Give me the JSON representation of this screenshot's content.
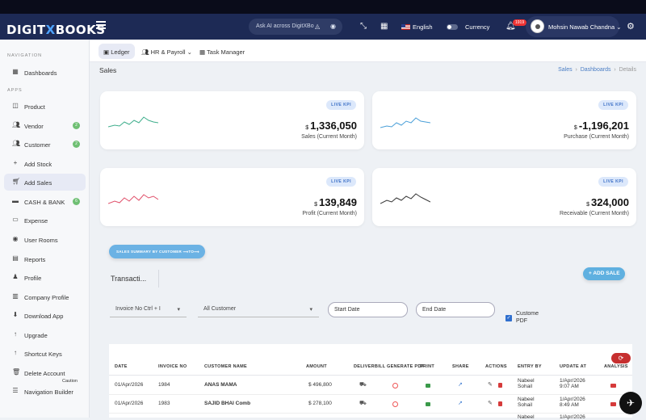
{
  "header": {
    "logo_part1": "DIGIT",
    "logo_part2": "BOOKS",
    "ai_search_placeholder": "Ask AI across DigitXBo",
    "language": "English",
    "currency_label": "Currency",
    "notification_count": "1919",
    "user_name": "Mohsin Nawab Chandna"
  },
  "sidebar": {
    "section_navigation": "NAVIGATION",
    "section_apps": "APPS",
    "items": [
      {
        "label": "Dashboards",
        "icon": "grid-icon"
      },
      {
        "label": "Product",
        "icon": "cube-icon"
      },
      {
        "label": "Vendor",
        "icon": "users-icon",
        "badge": "2"
      },
      {
        "label": "Customer",
        "icon": "users-icon",
        "badge": "2"
      },
      {
        "label": "Add Stock",
        "icon": "plus-icon"
      },
      {
        "label": "Add Sales",
        "icon": "cart-icon"
      },
      {
        "label": "CASH & BANK",
        "icon": "money-icon",
        "badge": "6"
      },
      {
        "label": "Expense",
        "icon": "card-icon"
      },
      {
        "label": "User Rooms",
        "icon": "user-icon"
      },
      {
        "label": "Reports",
        "icon": "document-icon"
      },
      {
        "label": "Profile",
        "icon": "person-icon"
      },
      {
        "label": "Company Profile",
        "icon": "building-icon"
      },
      {
        "label": "Download App",
        "icon": "download-icon"
      },
      {
        "label": "Upgrade",
        "icon": "arrow-up-icon"
      },
      {
        "label": "Shortcut Keys",
        "icon": "arrow-up-icon"
      },
      {
        "label": "Delete Account",
        "icon": "trash-icon"
      },
      {
        "label": "Navigation Builder",
        "icon": "sliders-icon"
      }
    ],
    "caution_text": "Caution"
  },
  "subnav": {
    "tabs": [
      "Ledger",
      "HR & Payroll",
      "Task Manager"
    ]
  },
  "page": {
    "title": "Sales",
    "breadcrumb": [
      "Sales",
      "Dashboards",
      "Details"
    ]
  },
  "kpis": [
    {
      "tag": "LIVE KPI",
      "currency": "$",
      "value": "1,336,050",
      "label": "Sales (Current Month)",
      "color": "#3fae8c"
    },
    {
      "tag": "LIVE KPI",
      "currency": "$",
      "value": "-1,196,201",
      "label": "Purchase (Current Month)",
      "color": "#4a9fd8"
    },
    {
      "tag": "LIVE KPI",
      "currency": "$",
      "value": "139,849",
      "label": "Profit (Current Month)",
      "color": "#e0506a"
    },
    {
      "tag": "LIVE KPI",
      "currency": "$",
      "value": "324,000",
      "label": "Receivable (Current Month)",
      "color": "#333333"
    }
  ],
  "actions": {
    "summary_button": "SALES SUMMARY BY CUSTOMER ⟶TO⟶",
    "add_sale_button": "+ ADD SALE",
    "transactions_label": "Transacti..."
  },
  "filters": {
    "invoice_select": "Invoice No Ctrl + I",
    "customer_select": "All Customer",
    "start_date": "Start Date",
    "end_date": "End Date",
    "custome_pdf_line1": "Custome",
    "custome_pdf_line2": "PDF"
  },
  "table": {
    "headers": [
      "DATE",
      "INVOICE NO",
      "CUSTOMER NAME",
      "AMOUNT",
      "DELIVERBILL",
      "GENERATE PDF",
      "PRINT",
      "SHARE",
      "ACTIONS",
      "ENTRY BY",
      "UPDATE AT",
      "ANALYSIS"
    ],
    "rows": [
      {
        "date": "01/Apr/2026",
        "invoice": "1984",
        "customer": "ANAS MAMA",
        "amount": "$ 496,800",
        "entry_line1": "Nabeel",
        "entry_line2": "Sohail",
        "update_line1": "1/Apr/2026",
        "update_line2": "9:07 AM"
      },
      {
        "date": "01/Apr/2026",
        "invoice": "1983",
        "customer": "SAJID BHAI Comb",
        "amount": "$ 278,100",
        "entry_line1": "Nabeel",
        "entry_line2": "Sohail",
        "update_line1": "1/Apr/2026",
        "update_line2": "8:49 AM"
      },
      {
        "date": "",
        "invoice": "",
        "customer": "",
        "amount": "",
        "entry_line1": "Nabeel",
        "entry_line2": "",
        "update_line1": "1/Apr/2026",
        "update_line2": ""
      }
    ]
  }
}
